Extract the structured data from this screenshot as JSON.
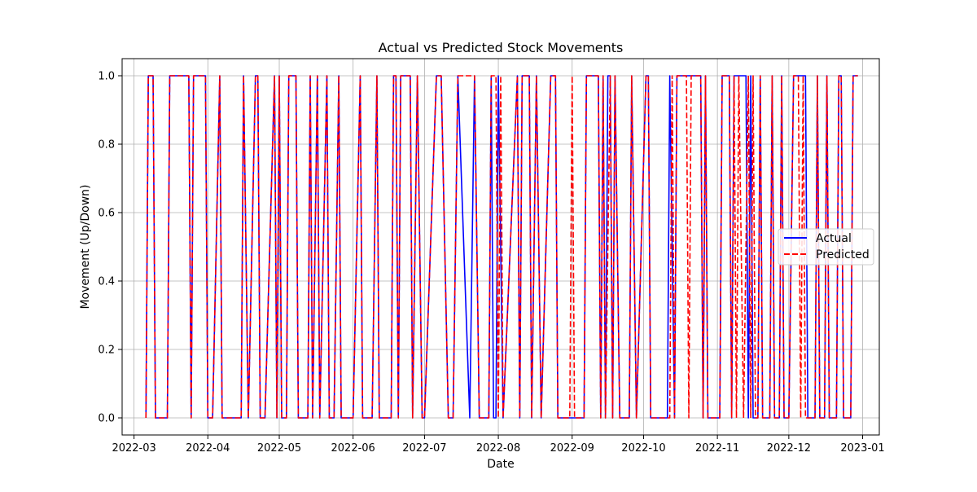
{
  "chart_data": {
    "type": "line",
    "title": "Actual vs Predicted Stock Movements",
    "xlabel": "Date",
    "ylabel": "Movement (Up/Down)",
    "x_range": [
      "2022-02-24",
      "2023-01-08"
    ],
    "ylim": [
      -0.05,
      1.05
    ],
    "y_ticks": [
      0.0,
      0.2,
      0.4,
      0.6,
      0.8,
      1.0
    ],
    "y_tick_labels": [
      "0.0",
      "0.2",
      "0.4",
      "0.6",
      "0.8",
      "1.0"
    ],
    "x_ticks": [
      "2022-03-01",
      "2022-04-01",
      "2022-05-01",
      "2022-06-01",
      "2022-07-01",
      "2022-08-01",
      "2022-09-01",
      "2022-10-01",
      "2022-11-01",
      "2022-12-01",
      "2023-01-01"
    ],
    "x_tick_labels": [
      "2022-03",
      "2022-04",
      "2022-05",
      "2022-06",
      "2022-07",
      "2022-08",
      "2022-09",
      "2022-10",
      "2022-11",
      "2022-12",
      "2023-01"
    ],
    "grid": true,
    "legend_position": "center-right",
    "series": [
      {
        "name": "Actual",
        "color": "#0000ff",
        "style": "solid",
        "points": [
          [
            "2022-03-06",
            0
          ],
          [
            "2022-03-07",
            1
          ],
          [
            "2022-03-09",
            1
          ],
          [
            "2022-03-10",
            0
          ],
          [
            "2022-03-15",
            0
          ],
          [
            "2022-03-16",
            1
          ],
          [
            "2022-03-24",
            1
          ],
          [
            "2022-03-25",
            0
          ],
          [
            "2022-03-26",
            1
          ],
          [
            "2022-03-31",
            1
          ],
          [
            "2022-04-01",
            0
          ],
          [
            "2022-04-03",
            0
          ],
          [
            "2022-04-06",
            1
          ],
          [
            "2022-04-07",
            0
          ],
          [
            "2022-04-15",
            0
          ],
          [
            "2022-04-16",
            1
          ],
          [
            "2022-04-18",
            0
          ],
          [
            "2022-04-21",
            1
          ],
          [
            "2022-04-22",
            1
          ],
          [
            "2022-04-23",
            0
          ],
          [
            "2022-04-25",
            0
          ],
          [
            "2022-04-29",
            1
          ],
          [
            "2022-04-30",
            0
          ],
          [
            "2022-05-01",
            1
          ],
          [
            "2022-05-02",
            0
          ],
          [
            "2022-05-04",
            0
          ],
          [
            "2022-05-05",
            1
          ],
          [
            "2022-05-08",
            1
          ],
          [
            "2022-05-09",
            0
          ],
          [
            "2022-05-13",
            0
          ],
          [
            "2022-05-14",
            1
          ],
          [
            "2022-05-15",
            0
          ],
          [
            "2022-05-17",
            1
          ],
          [
            "2022-05-18",
            0
          ],
          [
            "2022-05-21",
            1
          ],
          [
            "2022-05-22",
            0
          ],
          [
            "2022-05-24",
            0
          ],
          [
            "2022-05-26",
            1
          ],
          [
            "2022-05-27",
            0
          ],
          [
            "2022-06-01",
            0
          ],
          [
            "2022-06-04",
            1
          ],
          [
            "2022-06-05",
            0
          ],
          [
            "2022-06-09",
            0
          ],
          [
            "2022-06-11",
            1
          ],
          [
            "2022-06-12",
            0
          ],
          [
            "2022-06-17",
            0
          ],
          [
            "2022-06-18",
            1
          ],
          [
            "2022-06-19",
            1
          ],
          [
            "2022-06-20",
            0
          ],
          [
            "2022-06-21",
            1
          ],
          [
            "2022-06-25",
            1
          ],
          [
            "2022-06-26",
            0
          ],
          [
            "2022-06-28",
            1
          ],
          [
            "2022-06-30",
            0
          ],
          [
            "2022-07-01",
            0
          ],
          [
            "2022-07-06",
            1
          ],
          [
            "2022-07-08",
            1
          ],
          [
            "2022-07-11",
            0
          ],
          [
            "2022-07-13",
            0
          ],
          [
            "2022-07-15",
            1
          ],
          [
            "2022-07-20",
            0
          ],
          [
            "2022-07-22",
            1
          ],
          [
            "2022-07-24",
            0
          ],
          [
            "2022-07-28",
            0
          ],
          [
            "2022-07-29",
            1
          ],
          [
            "2022-07-30",
            0
          ],
          [
            "2022-07-31",
            0
          ],
          [
            "2022-08-01",
            1
          ],
          [
            "2022-08-03",
            0
          ],
          [
            "2022-08-09",
            1
          ],
          [
            "2022-08-10",
            0
          ],
          [
            "2022-08-11",
            1
          ],
          [
            "2022-08-14",
            1
          ],
          [
            "2022-08-15",
            0
          ],
          [
            "2022-08-17",
            1
          ],
          [
            "2022-08-19",
            0
          ],
          [
            "2022-08-23",
            1
          ],
          [
            "2022-08-25",
            1
          ],
          [
            "2022-08-26",
            0
          ],
          [
            "2022-09-01",
            0
          ],
          [
            "2022-09-06",
            0
          ],
          [
            "2022-09-07",
            1
          ],
          [
            "2022-09-12",
            1
          ],
          [
            "2022-09-13",
            0
          ],
          [
            "2022-09-14",
            1
          ],
          [
            "2022-09-15",
            0
          ],
          [
            "2022-09-16",
            1
          ],
          [
            "2022-09-17",
            1
          ],
          [
            "2022-09-18",
            0
          ],
          [
            "2022-09-19",
            1
          ],
          [
            "2022-09-21",
            0
          ],
          [
            "2022-09-25",
            0
          ],
          [
            "2022-09-26",
            1
          ],
          [
            "2022-09-28",
            0
          ],
          [
            "2022-10-02",
            1
          ],
          [
            "2022-10-03",
            1
          ],
          [
            "2022-10-04",
            0
          ],
          [
            "2022-10-11",
            0
          ],
          [
            "2022-10-12",
            1
          ],
          [
            "2022-10-14",
            0
          ],
          [
            "2022-10-15",
            1
          ],
          [
            "2022-10-25",
            1
          ],
          [
            "2022-10-26",
            0
          ],
          [
            "2022-10-27",
            1
          ],
          [
            "2022-10-28",
            0
          ],
          [
            "2022-11-02",
            0
          ],
          [
            "2022-11-03",
            1
          ],
          [
            "2022-11-06",
            1
          ],
          [
            "2022-11-07",
            0
          ],
          [
            "2022-11-08",
            1
          ],
          [
            "2022-11-13",
            1
          ],
          [
            "2022-11-14",
            0
          ],
          [
            "2022-11-15",
            1
          ],
          [
            "2022-11-16",
            0
          ],
          [
            "2022-11-18",
            0
          ],
          [
            "2022-11-19",
            1
          ],
          [
            "2022-11-20",
            0
          ],
          [
            "2022-11-23",
            0
          ],
          [
            "2022-11-24",
            1
          ],
          [
            "2022-11-25",
            0
          ],
          [
            "2022-11-27",
            0
          ],
          [
            "2022-11-28",
            1
          ],
          [
            "2022-11-29",
            0
          ],
          [
            "2022-12-01",
            0
          ],
          [
            "2022-12-03",
            1
          ],
          [
            "2022-12-08",
            1
          ],
          [
            "2022-12-09",
            0
          ],
          [
            "2022-12-12",
            0
          ],
          [
            "2022-12-13",
            1
          ],
          [
            "2022-12-14",
            0
          ],
          [
            "2022-12-16",
            0
          ],
          [
            "2022-12-17",
            1
          ],
          [
            "2022-12-18",
            0
          ],
          [
            "2022-12-21",
            0
          ],
          [
            "2022-12-22",
            1
          ],
          [
            "2022-12-23",
            1
          ],
          [
            "2022-12-24",
            0
          ],
          [
            "2022-12-27",
            0
          ],
          [
            "2022-12-28",
            1
          ],
          [
            "2022-12-30",
            1
          ]
        ]
      },
      {
        "name": "Predicted",
        "color": "#ff0000",
        "style": "dashed",
        "points": [
          [
            "2022-03-06",
            0
          ],
          [
            "2022-03-07",
            1
          ],
          [
            "2022-03-09",
            1
          ],
          [
            "2022-03-10",
            0
          ],
          [
            "2022-03-15",
            0
          ],
          [
            "2022-03-16",
            1
          ],
          [
            "2022-03-24",
            1
          ],
          [
            "2022-03-25",
            0
          ],
          [
            "2022-03-26",
            1
          ],
          [
            "2022-03-31",
            1
          ],
          [
            "2022-04-01",
            0
          ],
          [
            "2022-04-03",
            0
          ],
          [
            "2022-04-06",
            1
          ],
          [
            "2022-04-07",
            0
          ],
          [
            "2022-04-15",
            0
          ],
          [
            "2022-04-16",
            1
          ],
          [
            "2022-04-18",
            0
          ],
          [
            "2022-04-21",
            1
          ],
          [
            "2022-04-22",
            1
          ],
          [
            "2022-04-23",
            0
          ],
          [
            "2022-04-25",
            0
          ],
          [
            "2022-04-29",
            1
          ],
          [
            "2022-04-30",
            0
          ],
          [
            "2022-05-01",
            1
          ],
          [
            "2022-05-02",
            0
          ],
          [
            "2022-05-04",
            0
          ],
          [
            "2022-05-05",
            1
          ],
          [
            "2022-05-08",
            1
          ],
          [
            "2022-05-09",
            0
          ],
          [
            "2022-05-13",
            0
          ],
          [
            "2022-05-14",
            1
          ],
          [
            "2022-05-15",
            0
          ],
          [
            "2022-05-17",
            1
          ],
          [
            "2022-05-18",
            0
          ],
          [
            "2022-05-21",
            1
          ],
          [
            "2022-05-22",
            0
          ],
          [
            "2022-05-24",
            0
          ],
          [
            "2022-05-26",
            1
          ],
          [
            "2022-05-27",
            0
          ],
          [
            "2022-06-01",
            0
          ],
          [
            "2022-06-04",
            1
          ],
          [
            "2022-06-05",
            0
          ],
          [
            "2022-06-09",
            0
          ],
          [
            "2022-06-11",
            1
          ],
          [
            "2022-06-12",
            0
          ],
          [
            "2022-06-17",
            0
          ],
          [
            "2022-06-18",
            1
          ],
          [
            "2022-06-19",
            1
          ],
          [
            "2022-06-20",
            0
          ],
          [
            "2022-06-21",
            1
          ],
          [
            "2022-06-25",
            1
          ],
          [
            "2022-06-26",
            0
          ],
          [
            "2022-06-28",
            1
          ],
          [
            "2022-06-30",
            0
          ],
          [
            "2022-07-01",
            0
          ],
          [
            "2022-07-06",
            1
          ],
          [
            "2022-07-08",
            1
          ],
          [
            "2022-07-11",
            0
          ],
          [
            "2022-07-13",
            0
          ],
          [
            "2022-07-15",
            1
          ],
          [
            "2022-07-22",
            1
          ],
          [
            "2022-07-24",
            0
          ],
          [
            "2022-07-28",
            0
          ],
          [
            "2022-07-29",
            1
          ],
          [
            "2022-07-31",
            1
          ],
          [
            "2022-08-01",
            0
          ],
          [
            "2022-08-02",
            1
          ],
          [
            "2022-08-03",
            0
          ],
          [
            "2022-08-09",
            1
          ],
          [
            "2022-08-10",
            0
          ],
          [
            "2022-08-11",
            1
          ],
          [
            "2022-08-14",
            1
          ],
          [
            "2022-08-15",
            0
          ],
          [
            "2022-08-17",
            1
          ],
          [
            "2022-08-19",
            0
          ],
          [
            "2022-08-23",
            1
          ],
          [
            "2022-08-25",
            1
          ],
          [
            "2022-08-26",
            0
          ],
          [
            "2022-08-31",
            0
          ],
          [
            "2022-09-01",
            1
          ],
          [
            "2022-09-02",
            0
          ],
          [
            "2022-09-06",
            0
          ],
          [
            "2022-09-07",
            1
          ],
          [
            "2022-09-12",
            1
          ],
          [
            "2022-09-13",
            0
          ],
          [
            "2022-09-14",
            1
          ],
          [
            "2022-09-15",
            0
          ],
          [
            "2022-09-17",
            1
          ],
          [
            "2022-09-18",
            0
          ],
          [
            "2022-09-19",
            1
          ],
          [
            "2022-09-21",
            0
          ],
          [
            "2022-09-25",
            0
          ],
          [
            "2022-09-26",
            1
          ],
          [
            "2022-09-28",
            0
          ],
          [
            "2022-10-02",
            1
          ],
          [
            "2022-10-03",
            1
          ],
          [
            "2022-10-04",
            0
          ],
          [
            "2022-10-12",
            0
          ],
          [
            "2022-10-13",
            1
          ],
          [
            "2022-10-14",
            0
          ],
          [
            "2022-10-15",
            1
          ],
          [
            "2022-10-19",
            1
          ],
          [
            "2022-10-20",
            0
          ],
          [
            "2022-10-21",
            1
          ],
          [
            "2022-10-25",
            1
          ],
          [
            "2022-10-26",
            0
          ],
          [
            "2022-10-27",
            1
          ],
          [
            "2022-10-28",
            0
          ],
          [
            "2022-11-02",
            0
          ],
          [
            "2022-11-03",
            1
          ],
          [
            "2022-11-06",
            1
          ],
          [
            "2022-11-07",
            0
          ],
          [
            "2022-11-08",
            1
          ],
          [
            "2022-11-09",
            0
          ],
          [
            "2022-11-10",
            1
          ],
          [
            "2022-11-12",
            0
          ],
          [
            "2022-11-14",
            1
          ],
          [
            "2022-11-15",
            0
          ],
          [
            "2022-11-16",
            1
          ],
          [
            "2022-11-17",
            0
          ],
          [
            "2022-11-18",
            0
          ],
          [
            "2022-11-19",
            1
          ],
          [
            "2022-11-20",
            0
          ],
          [
            "2022-11-23",
            0
          ],
          [
            "2022-11-24",
            1
          ],
          [
            "2022-11-25",
            0
          ],
          [
            "2022-11-27",
            0
          ],
          [
            "2022-11-28",
            1
          ],
          [
            "2022-11-29",
            0
          ],
          [
            "2022-12-01",
            0
          ],
          [
            "2022-12-03",
            1
          ],
          [
            "2022-12-05",
            1
          ],
          [
            "2022-12-06",
            0
          ],
          [
            "2022-12-07",
            1
          ],
          [
            "2022-12-08",
            0
          ],
          [
            "2022-12-12",
            0
          ],
          [
            "2022-12-13",
            1
          ],
          [
            "2022-12-14",
            0
          ],
          [
            "2022-12-16",
            0
          ],
          [
            "2022-12-17",
            1
          ],
          [
            "2022-12-18",
            0
          ],
          [
            "2022-12-21",
            0
          ],
          [
            "2022-12-22",
            1
          ],
          [
            "2022-12-23",
            1
          ],
          [
            "2022-12-24",
            0
          ],
          [
            "2022-12-27",
            0
          ],
          [
            "2022-12-28",
            1
          ],
          [
            "2022-12-30",
            1
          ]
        ]
      }
    ]
  }
}
